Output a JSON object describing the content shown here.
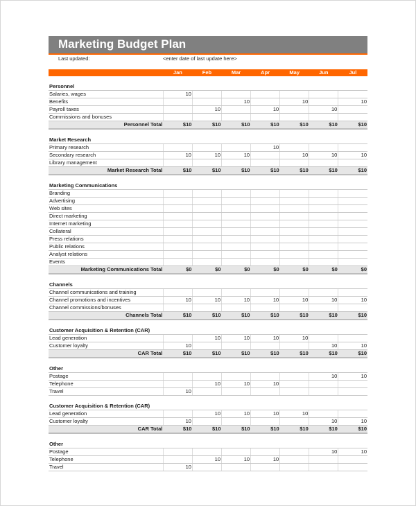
{
  "title": "Marketing Budget Plan",
  "last_updated_label": "Last updated:",
  "last_updated_value": "<enter date of last update here>",
  "months": [
    "Jan",
    "Feb",
    "Mar",
    "Apr",
    "May",
    "Jun",
    "Jul"
  ],
  "colors": {
    "header_gray": "#808080",
    "accent_orange": "#ff6600",
    "total_fill": "#e6e6e6"
  },
  "sections": [
    {
      "name": "Personnel",
      "items": [
        {
          "label": "Salaries, wages",
          "values": [
            "10",
            "",
            "",
            "",
            "",
            "",
            ""
          ]
        },
        {
          "label": "Benefits",
          "values": [
            "",
            "",
            "10",
            "",
            "10",
            "",
            "10"
          ]
        },
        {
          "label": "Payroll taxes",
          "values": [
            "",
            "10",
            "",
            "10",
            "",
            "10",
            ""
          ]
        },
        {
          "label": "Commissions and bonuses",
          "values": [
            "",
            "",
            "",
            "",
            "",
            "",
            ""
          ]
        }
      ],
      "total_label": "Personnel Total",
      "totals": [
        "$10",
        "$10",
        "$10",
        "$10",
        "$10",
        "$10",
        "$10"
      ]
    },
    {
      "name": "Market Research",
      "items": [
        {
          "label": "Primary research",
          "values": [
            "",
            "",
            "",
            "10",
            "",
            "",
            ""
          ]
        },
        {
          "label": "Secondary research",
          "values": [
            "10",
            "10",
            "10",
            "",
            "10",
            "10",
            "10"
          ]
        },
        {
          "label": "Library management",
          "values": [
            "",
            "",
            "",
            "",
            "",
            "",
            ""
          ]
        }
      ],
      "total_label": "Market Research Total",
      "totals": [
        "$10",
        "$10",
        "$10",
        "$10",
        "$10",
        "$10",
        "$10"
      ]
    },
    {
      "name": "Marketing Communications",
      "items": [
        {
          "label": "Branding",
          "values": [
            "",
            "",
            "",
            "",
            "",
            "",
            ""
          ]
        },
        {
          "label": "Advertising",
          "values": [
            "",
            "",
            "",
            "",
            "",
            "",
            ""
          ]
        },
        {
          "label": "Web sites",
          "values": [
            "",
            "",
            "",
            "",
            "",
            "",
            ""
          ]
        },
        {
          "label": "Direct marketing",
          "values": [
            "",
            "",
            "",
            "",
            "",
            "",
            ""
          ]
        },
        {
          "label": "Internet marketing",
          "values": [
            "",
            "",
            "",
            "",
            "",
            "",
            ""
          ]
        },
        {
          "label": "Collateral",
          "values": [
            "",
            "",
            "",
            "",
            "",
            "",
            ""
          ]
        },
        {
          "label": "Press relations",
          "values": [
            "",
            "",
            "",
            "",
            "",
            "",
            ""
          ]
        },
        {
          "label": "Public relations",
          "values": [
            "",
            "",
            "",
            "",
            "",
            "",
            ""
          ]
        },
        {
          "label": "Analyst relations",
          "values": [
            "",
            "",
            "",
            "",
            "",
            "",
            ""
          ]
        },
        {
          "label": "Events",
          "values": [
            "",
            "",
            "",
            "",
            "",
            "",
            ""
          ]
        }
      ],
      "total_label": "Marketing Communications Total",
      "totals": [
        "$0",
        "$0",
        "$0",
        "$0",
        "$0",
        "$0",
        "$0"
      ]
    },
    {
      "name": "Channels",
      "items": [
        {
          "label": "Channel communications and training",
          "values": [
            "",
            "",
            "",
            "",
            "",
            "",
            ""
          ]
        },
        {
          "label": "Channel promotions and incentives",
          "values": [
            "10",
            "10",
            "10",
            "10",
            "10",
            "10",
            "10"
          ]
        },
        {
          "label": "Channel commissions/bonuses",
          "values": [
            "",
            "",
            "",
            "",
            "",
            "",
            ""
          ]
        }
      ],
      "total_label": "Channels Total",
      "totals": [
        "$10",
        "$10",
        "$10",
        "$10",
        "$10",
        "$10",
        "$10"
      ]
    },
    {
      "name": "Customer Acquisition & Retention (CAR)",
      "items": [
        {
          "label": "Lead generation",
          "values": [
            "",
            "10",
            "10",
            "10",
            "10",
            "",
            ""
          ]
        },
        {
          "label": "Customer loyalty",
          "values": [
            "10",
            "",
            "",
            "",
            "",
            "10",
            "10"
          ]
        }
      ],
      "total_label": "CAR Total",
      "totals": [
        "$10",
        "$10",
        "$10",
        "$10",
        "$10",
        "$10",
        "$10"
      ]
    },
    {
      "name": "Other",
      "items": [
        {
          "label": "Postage",
          "values": [
            "",
            "",
            "",
            "",
            "",
            "10",
            "10"
          ]
        },
        {
          "label": "Telephone",
          "values": [
            "",
            "10",
            "10",
            "10",
            "",
            "",
            ""
          ]
        },
        {
          "label": "Travel",
          "values": [
            "10",
            "",
            "",
            "",
            "",
            "",
            ""
          ]
        }
      ]
    },
    {
      "name": "Customer Acquisition & Retention (CAR)",
      "items": [
        {
          "label": "Lead generation",
          "values": [
            "",
            "10",
            "10",
            "10",
            "10",
            "",
            ""
          ]
        },
        {
          "label": "Customer loyalty",
          "values": [
            "10",
            "",
            "",
            "",
            "",
            "10",
            "10"
          ]
        }
      ],
      "total_label": "CAR Total",
      "totals": [
        "$10",
        "$10",
        "$10",
        "$10",
        "$10",
        "$10",
        "$10"
      ]
    },
    {
      "name": "Other",
      "items": [
        {
          "label": "Postage",
          "values": [
            "",
            "",
            "",
            "",
            "",
            "10",
            "10"
          ]
        },
        {
          "label": "Telephone",
          "values": [
            "",
            "10",
            "10",
            "10",
            "",
            "",
            ""
          ]
        },
        {
          "label": "Travel",
          "values": [
            "10",
            "",
            "",
            "",
            "",
            "",
            ""
          ]
        }
      ]
    }
  ]
}
